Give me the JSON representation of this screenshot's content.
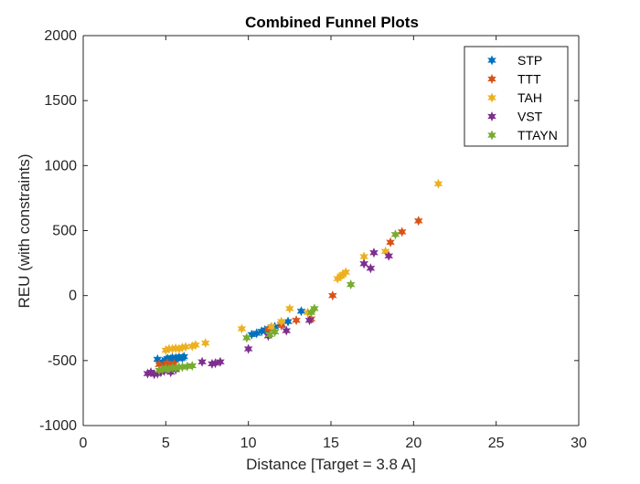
{
  "chart_data": {
    "type": "scatter",
    "title": "Combined Funnel Plots",
    "xlabel": "Distance [Target = 3.8 A]",
    "ylabel": "REU (with constraints)",
    "xlim": [
      0,
      30
    ],
    "ylim": [
      -1000,
      2000
    ],
    "xticks": [
      0,
      5,
      10,
      15,
      20,
      25,
      30
    ],
    "yticks": [
      -1000,
      -500,
      0,
      500,
      1000,
      1500,
      2000
    ],
    "grid": false,
    "legend_position": "top-right",
    "marker": "hexagram",
    "series": [
      {
        "name": "STP",
        "color": "#0072BD",
        "points": [
          [
            4.5,
            -490
          ],
          [
            4.8,
            -510
          ],
          [
            5.0,
            -495
          ],
          [
            5.1,
            -485
          ],
          [
            5.2,
            -500
          ],
          [
            5.3,
            -488
          ],
          [
            5.4,
            -478
          ],
          [
            5.5,
            -492
          ],
          [
            5.6,
            -480
          ],
          [
            5.7,
            -485
          ],
          [
            5.8,
            -475
          ],
          [
            6.0,
            -480
          ],
          [
            6.1,
            -470
          ],
          [
            10.2,
            -300
          ],
          [
            10.5,
            -290
          ],
          [
            10.8,
            -275
          ],
          [
            11.0,
            -265
          ],
          [
            11.3,
            -255
          ],
          [
            11.6,
            -240
          ],
          [
            12.0,
            -220
          ],
          [
            12.4,
            -200
          ],
          [
            13.2,
            -120
          ]
        ]
      },
      {
        "name": "TTT",
        "color": "#D95319",
        "points": [
          [
            4.6,
            -530
          ],
          [
            4.9,
            -545
          ],
          [
            5.1,
            -520
          ],
          [
            5.3,
            -540
          ],
          [
            5.5,
            -525
          ],
          [
            11.2,
            -260
          ],
          [
            12.0,
            -230
          ],
          [
            12.9,
            -190
          ],
          [
            13.8,
            -180
          ],
          [
            15.1,
            0
          ],
          [
            18.6,
            410
          ],
          [
            19.3,
            490
          ],
          [
            20.3,
            575
          ]
        ]
      },
      {
        "name": "TAH",
        "color": "#EDB120",
        "points": [
          [
            5.0,
            -420
          ],
          [
            5.2,
            -410
          ],
          [
            5.4,
            -410
          ],
          [
            5.6,
            -405
          ],
          [
            5.8,
            -410
          ],
          [
            6.0,
            -400
          ],
          [
            6.2,
            -395
          ],
          [
            6.6,
            -390
          ],
          [
            6.8,
            -380
          ],
          [
            7.4,
            -365
          ],
          [
            9.6,
            -255
          ],
          [
            11.4,
            -240
          ],
          [
            12.0,
            -200
          ],
          [
            12.5,
            -100
          ],
          [
            13.6,
            -130
          ],
          [
            15.4,
            130
          ],
          [
            15.6,
            150
          ],
          [
            15.7,
            160
          ],
          [
            15.9,
            180
          ],
          [
            17.0,
            300
          ],
          [
            18.3,
            340
          ],
          [
            21.5,
            860
          ]
        ]
      },
      {
        "name": "VST",
        "color": "#7E2F8E",
        "points": [
          [
            3.9,
            -600
          ],
          [
            4.1,
            -590
          ],
          [
            4.3,
            -605
          ],
          [
            4.5,
            -600
          ],
          [
            4.7,
            -590
          ],
          [
            4.9,
            -580
          ],
          [
            5.3,
            -590
          ],
          [
            5.6,
            -570
          ],
          [
            7.2,
            -510
          ],
          [
            7.8,
            -525
          ],
          [
            8.0,
            -520
          ],
          [
            8.3,
            -510
          ],
          [
            10.0,
            -410
          ],
          [
            11.2,
            -310
          ],
          [
            12.3,
            -270
          ],
          [
            13.7,
            -190
          ],
          [
            17.0,
            245
          ],
          [
            17.4,
            210
          ],
          [
            17.6,
            330
          ],
          [
            18.5,
            305
          ]
        ]
      },
      {
        "name": "TTAYN",
        "color": "#77AC30",
        "points": [
          [
            4.6,
            -575
          ],
          [
            4.8,
            -570
          ],
          [
            5.0,
            -560
          ],
          [
            5.2,
            -565
          ],
          [
            5.4,
            -555
          ],
          [
            5.6,
            -560
          ],
          [
            5.8,
            -550
          ],
          [
            6.0,
            -550
          ],
          [
            6.3,
            -545
          ],
          [
            6.6,
            -540
          ],
          [
            9.9,
            -325
          ],
          [
            11.3,
            -300
          ],
          [
            11.6,
            -280
          ],
          [
            13.8,
            -130
          ],
          [
            14.0,
            -100
          ],
          [
            16.2,
            85
          ],
          [
            18.9,
            470
          ]
        ]
      }
    ]
  }
}
